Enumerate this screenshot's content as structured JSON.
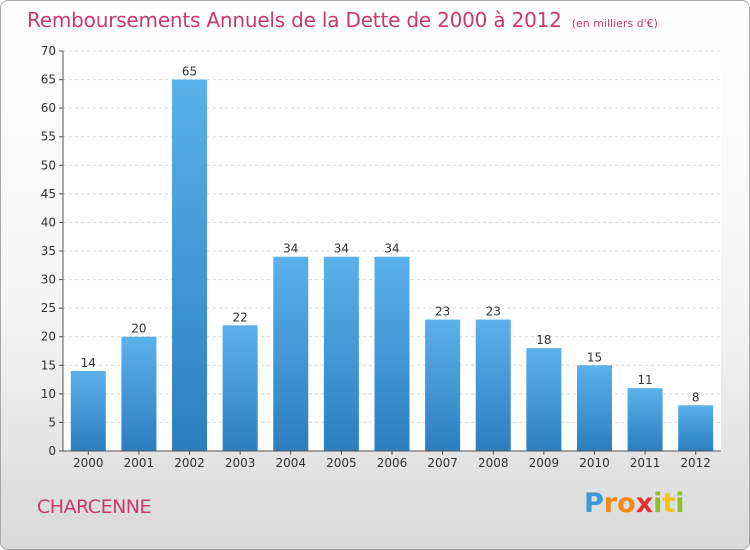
{
  "header": {
    "title": "Remboursements Annuels de la Dette de 2000 à 2012",
    "subtitle": "(en milliers d'€)"
  },
  "footer": {
    "commune": "CHARCENNE",
    "logo": "Proxiti"
  },
  "colors": {
    "title": "#c9396e",
    "bar_top": "#5bb1ea",
    "bar_bottom": "#2b7fc0"
  },
  "chart_data": {
    "type": "bar",
    "categories": [
      "2000",
      "2001",
      "2002",
      "2003",
      "2004",
      "2005",
      "2006",
      "2007",
      "2008",
      "2009",
      "2010",
      "2011",
      "2012"
    ],
    "values": [
      14,
      20,
      65,
      22,
      34,
      34,
      34,
      23,
      23,
      18,
      15,
      11,
      8
    ],
    "title": "Remboursements Annuels de la Dette de 2000 à 2012",
    "xlabel": "",
    "ylabel": "",
    "ylim": [
      0,
      70
    ],
    "yticks": [
      0,
      5,
      10,
      15,
      20,
      25,
      30,
      35,
      40,
      45,
      50,
      55,
      60,
      65,
      70
    ],
    "grid": true,
    "legend": "none",
    "data_labels": true
  }
}
